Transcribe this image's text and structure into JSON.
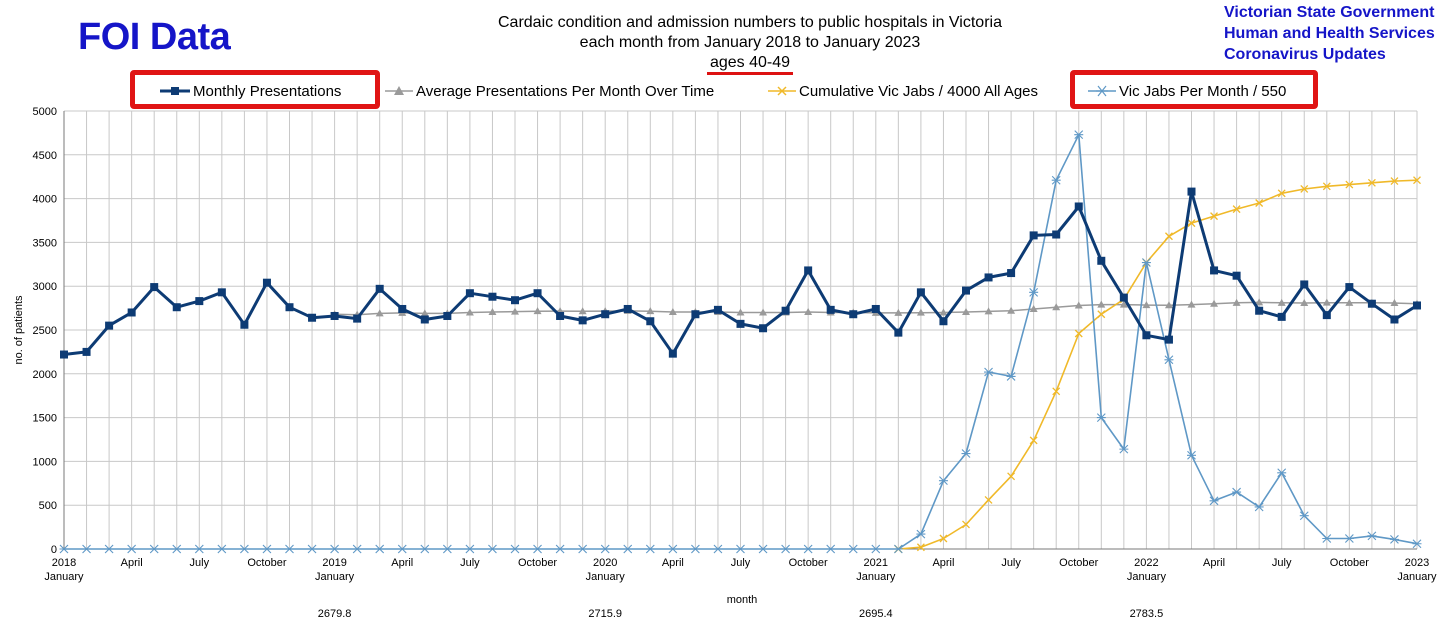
{
  "header": {
    "brand": "FOI Data",
    "title_line1": "Cardaic condition and admission numbers to public hospitals in Victoria",
    "title_line2": "each month  from  January 2018 to January 2023",
    "subtitle": "ages 40-49",
    "source_lines": [
      "Victorian State Government",
      "Human and Health Services",
      "Coronavirus Updates"
    ]
  },
  "colors": {
    "monthly": "#0d3b74",
    "average": "#9a9a9a",
    "cumulative": "#f0b929",
    "perMonth": "#5f98c6",
    "highlight": "#e01414",
    "brand": "#1515c8"
  },
  "chart_data": {
    "type": "line",
    "ylabel": "no. of patients",
    "xlabel": "month",
    "ylim": [
      0,
      5000
    ],
    "yticks": [
      0,
      500,
      1000,
      1500,
      2000,
      2500,
      3000,
      3500,
      4000,
      4500,
      5000
    ],
    "grid": true,
    "legend_position": "top",
    "x_tick_labels": [
      {
        "i": 0,
        "top": "2018",
        "bottom": "January"
      },
      {
        "i": 3,
        "top": "April",
        "bottom": ""
      },
      {
        "i": 6,
        "top": "July",
        "bottom": ""
      },
      {
        "i": 9,
        "top": "October",
        "bottom": ""
      },
      {
        "i": 12,
        "top": "2019",
        "bottom": "January"
      },
      {
        "i": 15,
        "top": "April",
        "bottom": ""
      },
      {
        "i": 18,
        "top": "July",
        "bottom": ""
      },
      {
        "i": 21,
        "top": "October",
        "bottom": ""
      },
      {
        "i": 24,
        "top": "2020",
        "bottom": "January"
      },
      {
        "i": 27,
        "top": "April",
        "bottom": ""
      },
      {
        "i": 30,
        "top": "July",
        "bottom": ""
      },
      {
        "i": 33,
        "top": "October",
        "bottom": ""
      },
      {
        "i": 36,
        "top": "2021",
        "bottom": "January"
      },
      {
        "i": 39,
        "top": "April",
        "bottom": ""
      },
      {
        "i": 42,
        "top": "July",
        "bottom": ""
      },
      {
        "i": 45,
        "top": "October",
        "bottom": ""
      },
      {
        "i": 48,
        "top": "2022",
        "bottom": "January"
      },
      {
        "i": 51,
        "top": "April",
        "bottom": ""
      },
      {
        "i": 54,
        "top": "July",
        "bottom": ""
      },
      {
        "i": 57,
        "top": "October",
        "bottom": ""
      },
      {
        "i": 60,
        "top": "2023",
        "bottom": "January"
      }
    ],
    "annotations": [
      {
        "i": 12,
        "text": "2679.8"
      },
      {
        "i": 24,
        "text": "2715.9"
      },
      {
        "i": 36,
        "text": "2695.4"
      },
      {
        "i": 48,
        "text": "2783.5"
      }
    ],
    "series": [
      {
        "name": "Monthly Presentations",
        "highlighted": true,
        "start_index": 0,
        "values": [
          2220,
          2250,
          2550,
          2700,
          2990,
          2760,
          2830,
          2930,
          2560,
          3040,
          2760,
          2640,
          2660,
          2630,
          2970,
          2740,
          2620,
          2660,
          2920,
          2880,
          2840,
          2920,
          2660,
          2610,
          2680,
          2740,
          2600,
          2230,
          2680,
          2730,
          2570,
          2520,
          2720,
          3180,
          2730,
          2680,
          2740,
          2470,
          2930,
          2600,
          2950,
          3100,
          3150,
          3580,
          3590,
          3910,
          3290,
          2870,
          2440,
          2390,
          4080,
          3180,
          3120,
          2720,
          2650,
          3020,
          2670,
          2990,
          2800,
          2620,
          2780
        ]
      },
      {
        "name": "Average Presentations Per Month Over Time",
        "highlighted": false,
        "start_index": 12,
        "values": [
          2680,
          2675,
          2690,
          2695,
          2690,
          2690,
          2700,
          2705,
          2710,
          2715,
          2716,
          2714,
          2716,
          2718,
          2715,
          2705,
          2705,
          2705,
          2700,
          2700,
          2700,
          2705,
          2700,
          2700,
          2695,
          2695,
          2698,
          2700,
          2705,
          2712,
          2720,
          2740,
          2760,
          2780,
          2790,
          2790,
          2784,
          2783,
          2790,
          2800,
          2810,
          2815,
          2810,
          2808,
          2812,
          2810,
          2810,
          2808,
          2800
        ]
      },
      {
        "name": "Cumulative Vic Jabs / 4000 All Ages",
        "highlighted": false,
        "start_index": 37,
        "values": [
          0,
          20,
          120,
          280,
          560,
          830,
          1240,
          1800,
          2460,
          2680,
          2850,
          3270,
          3570,
          3720,
          3800,
          3880,
          3950,
          4060,
          4110,
          4140,
          4160,
          4180,
          4200,
          4210
        ]
      },
      {
        "name": "Vic Jabs Per Month / 550",
        "highlighted": true,
        "start_index": 0,
        "values": [
          0,
          0,
          0,
          0,
          0,
          0,
          0,
          0,
          0,
          0,
          0,
          0,
          0,
          0,
          0,
          0,
          0,
          0,
          0,
          0,
          0,
          0,
          0,
          0,
          0,
          0,
          0,
          0,
          0,
          0,
          0,
          0,
          0,
          0,
          0,
          0,
          0,
          0,
          170,
          780,
          1090,
          2020,
          1970,
          2930,
          4210,
          4730,
          1500,
          1140,
          3270,
          2160,
          1070,
          550,
          650,
          480,
          870,
          380,
          120,
          120,
          150,
          110,
          60
        ]
      }
    ]
  }
}
